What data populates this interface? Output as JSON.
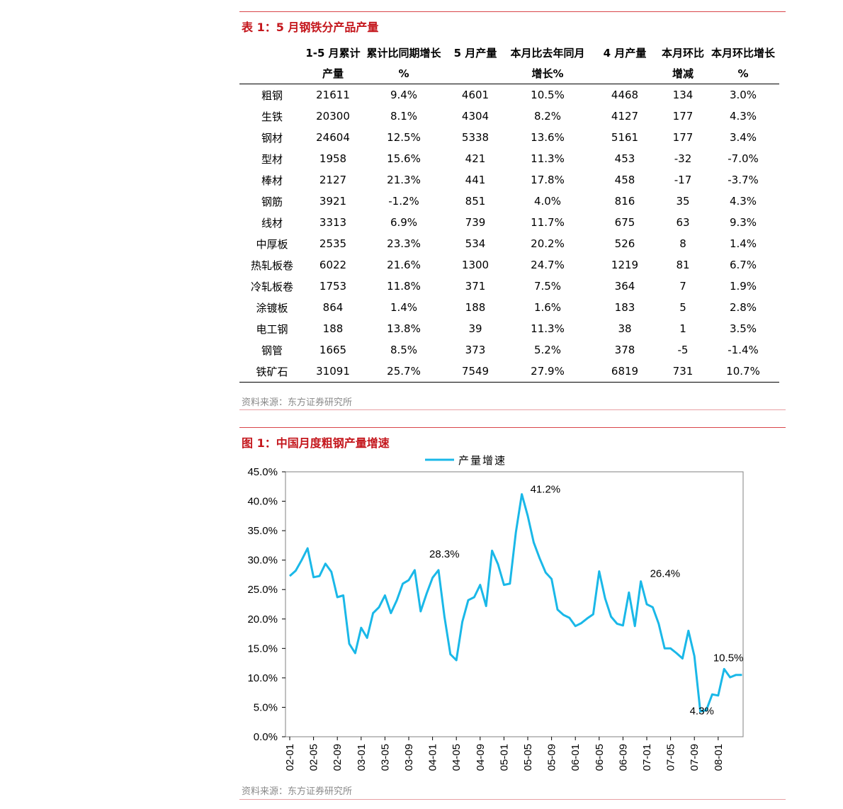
{
  "table1": {
    "title": "表 1：5 月钢铁分产品产量",
    "headers": [
      [
        "",
        "1-5 月累计",
        "累计比同期增长",
        "5 月产量",
        "本月比去年同月",
        "4 月产量",
        "本月环比",
        "本月环比增长"
      ],
      [
        "",
        "产量",
        "%",
        "",
        "增长%",
        "",
        "增减",
        "%"
      ]
    ],
    "rows": [
      [
        "粗钢",
        "21611",
        "9.4%",
        "4601",
        "10.5%",
        "4468",
        "134",
        "3.0%"
      ],
      [
        "生铁",
        "20300",
        "8.1%",
        "4304",
        "8.2%",
        "4127",
        "177",
        "4.3%"
      ],
      [
        "钢材",
        "24604",
        "12.5%",
        "5338",
        "13.6%",
        "5161",
        "177",
        "3.4%"
      ],
      [
        "型材",
        "1958",
        "15.6%",
        "421",
        "11.3%",
        "453",
        "-32",
        "-7.0%"
      ],
      [
        "棒材",
        "2127",
        "21.3%",
        "441",
        "17.8%",
        "458",
        "-17",
        "-3.7%"
      ],
      [
        "钢筋",
        "3921",
        "-1.2%",
        "851",
        "4.0%",
        "816",
        "35",
        "4.3%"
      ],
      [
        "线材",
        "3313",
        "6.9%",
        "739",
        "11.7%",
        "675",
        "63",
        "9.3%"
      ],
      [
        "中厚板",
        "2535",
        "23.3%",
        "534",
        "20.2%",
        "526",
        "8",
        "1.4%"
      ],
      [
        "热轧板卷",
        "6022",
        "21.6%",
        "1300",
        "24.7%",
        "1219",
        "81",
        "6.7%"
      ],
      [
        "冷轧板卷",
        "1753",
        "11.8%",
        "371",
        "7.5%",
        "364",
        "7",
        "1.9%"
      ],
      [
        "涂镀板",
        "864",
        "1.4%",
        "188",
        "1.6%",
        "183",
        "5",
        "2.8%"
      ],
      [
        "电工钢",
        "188",
        "13.8%",
        "39",
        "11.3%",
        "38",
        "1",
        "3.5%"
      ],
      [
        "钢管",
        "1665",
        "8.5%",
        "373",
        "5.2%",
        "378",
        "-5",
        "-1.4%"
      ],
      [
        "铁矿石",
        "31091",
        "25.7%",
        "7549",
        "27.9%",
        "6819",
        "731",
        "10.7%"
      ]
    ],
    "source": "资料来源：东方证券研究所"
  },
  "figure1": {
    "title": "图 1：中国月度粗钢产量增速",
    "source": "资料来源：东方证券研究所"
  },
  "colors": {
    "accent": "#c4161c",
    "series": "#1ab8e8"
  },
  "chart_data": {
    "type": "line",
    "title": "",
    "xlabel": "",
    "ylabel": "",
    "ylim": [
      0,
      45
    ],
    "yticks": [
      "0.0%",
      "5.0%",
      "10.0%",
      "15.0%",
      "20.0%",
      "25.0%",
      "30.0%",
      "35.0%",
      "40.0%",
      "45.0%"
    ],
    "xticks": [
      "02-01",
      "02-05",
      "02-09",
      "03-01",
      "03-05",
      "03-09",
      "04-01",
      "04-05",
      "04-09",
      "05-01",
      "05-05",
      "05-09",
      "06-01",
      "06-05",
      "06-09",
      "07-01",
      "07-05",
      "07-09",
      "08-01"
    ],
    "legend": "top",
    "grid": false,
    "x": [
      "02-01",
      "02-02",
      "02-03",
      "02-04",
      "02-05",
      "02-06",
      "02-07",
      "02-08",
      "02-09",
      "02-10",
      "02-11",
      "02-12",
      "03-01",
      "03-02",
      "03-03",
      "03-04",
      "03-05",
      "03-06",
      "03-07",
      "03-08",
      "03-09",
      "03-10",
      "03-11",
      "03-12",
      "04-01",
      "04-02",
      "04-03",
      "04-04",
      "04-05",
      "04-06",
      "04-07",
      "04-08",
      "04-09",
      "04-10",
      "04-11",
      "04-12",
      "05-01",
      "05-02",
      "05-03",
      "05-04",
      "05-05",
      "05-06",
      "05-07",
      "05-08",
      "05-09",
      "05-10",
      "05-11",
      "05-12",
      "06-01",
      "06-02",
      "06-03",
      "06-04",
      "06-05",
      "06-06",
      "06-07",
      "06-08",
      "06-09",
      "06-10",
      "06-11",
      "06-12",
      "07-01",
      "07-02",
      "07-03",
      "07-04",
      "07-05",
      "07-06",
      "07-07",
      "07-08",
      "07-09",
      "07-10",
      "07-11",
      "07-12",
      "08-01",
      "08-02",
      "08-03",
      "08-04",
      "08-05"
    ],
    "series": [
      {
        "name": "产量增速",
        "values": [
          27.3,
          28.2,
          30.0,
          32.0,
          27.1,
          27.3,
          29.4,
          28.0,
          23.7,
          24.0,
          15.8,
          14.2,
          18.5,
          16.8,
          21.0,
          22.0,
          24.0,
          21.0,
          23.2,
          26.0,
          26.6,
          28.3,
          21.3,
          24.3,
          27.0,
          28.3,
          20.4,
          14.0,
          13.0,
          19.5,
          23.2,
          23.7,
          25.8,
          22.2,
          31.6,
          29.3,
          25.8,
          26.0,
          34.7,
          41.2,
          37.5,
          33.0,
          30.3,
          27.9,
          26.8,
          21.6,
          20.7,
          20.2,
          18.8,
          19.3,
          20.1,
          20.8,
          28.1,
          23.5,
          20.4,
          19.2,
          18.9,
          24.5,
          18.8,
          26.4,
          22.5,
          22.0,
          19.2,
          15.0,
          15.0,
          14.2,
          13.3,
          18.0,
          13.7,
          4.3,
          4.5,
          7.2,
          7.0,
          11.5,
          10.1,
          10.5,
          10.5
        ]
      }
    ],
    "annotations": [
      {
        "x": "05-04",
        "y": 41.2,
        "label": "41.2%"
      },
      {
        "x": "04-02",
        "y": 28.3,
        "label": "28.3%"
      },
      {
        "x": "06-12",
        "y": 26.4,
        "label": "26.4%"
      },
      {
        "x": "08-05",
        "y": 10.5,
        "label": "10.5%"
      },
      {
        "x": "07-10",
        "y": 4.3,
        "label": "4.3%"
      }
    ]
  }
}
